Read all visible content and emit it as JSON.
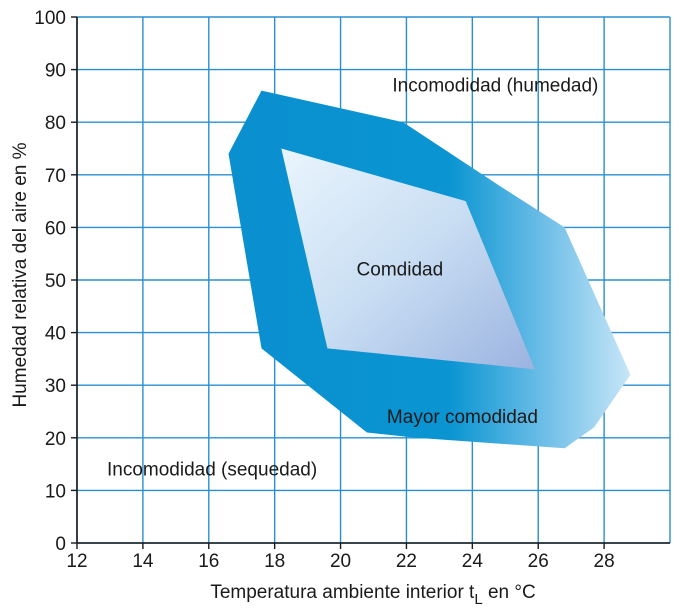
{
  "chart_data": {
    "type": "area",
    "xlabel": "Temperatura ambiente interior t",
    "xlabel_sub": "L",
    "xlabel_suffix": " en °C",
    "ylabel": "Humedad relativa del aire en %",
    "xlim": [
      12,
      30
    ],
    "ylim": [
      0,
      100
    ],
    "x_ticks": [
      12,
      14,
      16,
      18,
      20,
      22,
      24,
      26,
      28
    ],
    "y_ticks": [
      0,
      10,
      20,
      30,
      40,
      50,
      60,
      70,
      80,
      90,
      100
    ],
    "x_tick_labels": [
      "12",
      "14",
      "16",
      "18",
      "20",
      "22",
      "24",
      "26",
      "28"
    ],
    "y_tick_labels": [
      "0",
      "10",
      "20",
      "30",
      "40",
      "50",
      "60",
      "70",
      "80",
      "90",
      "100"
    ],
    "grid": true,
    "colors": {
      "grid": "#2a8fd0",
      "outer_band": "#0a8fcf",
      "outer_band_light": "#bfe2f6",
      "inner_zone_light": "#dbeefa",
      "inner_zone_dark": "#9fb8e2"
    },
    "regions": [
      {
        "label": "Mayor comodidad",
        "points": [
          [
            16.6,
            74
          ],
          [
            17.6,
            86
          ],
          [
            21.9,
            80
          ],
          [
            24.8,
            68
          ],
          [
            26.8,
            60
          ],
          [
            28.8,
            32
          ],
          [
            27.7,
            22
          ],
          [
            26.8,
            18
          ],
          [
            22.3,
            20
          ],
          [
            20.8,
            21
          ],
          [
            17.6,
            37
          ]
        ]
      },
      {
        "label": "Comdidad",
        "points": [
          [
            18.2,
            75
          ],
          [
            23.8,
            65
          ],
          [
            25.9,
            33
          ],
          [
            19.6,
            37
          ]
        ]
      }
    ],
    "annotations": [
      {
        "text": "Incomodidad (humedad)",
        "x": 24.7,
        "y": 87
      },
      {
        "text": "Comdidad",
        "x": 21.8,
        "y": 52
      },
      {
        "text": "Mayor comodidad",
        "x": 23.7,
        "y": 24
      },
      {
        "text": "Incomodidad (sequedad)",
        "x": 16.1,
        "y": 14
      }
    ]
  }
}
